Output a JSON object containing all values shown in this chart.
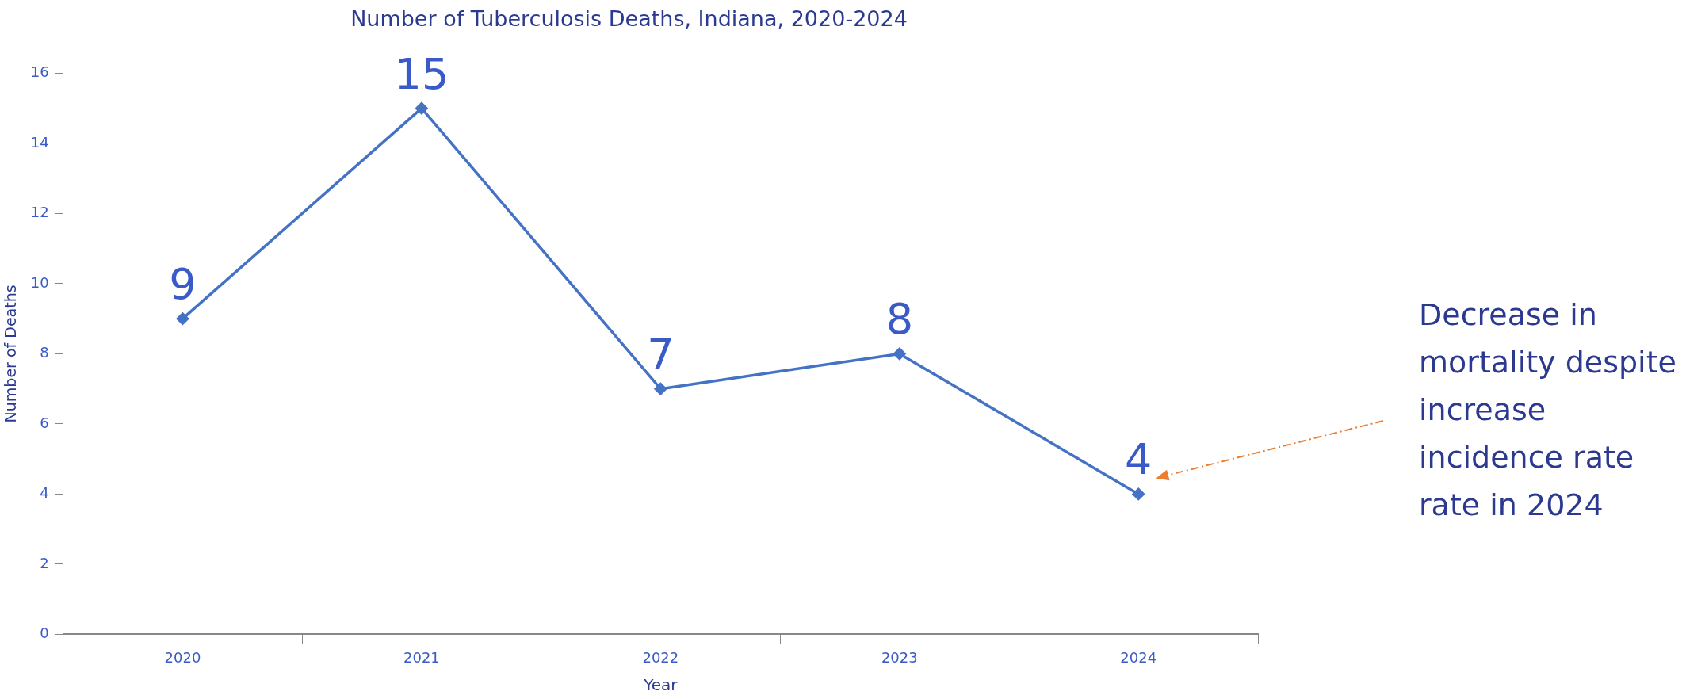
{
  "chart_data": {
    "type": "line",
    "title": "Number of Tuberculosis Deaths, Indiana, 2020-2024",
    "xlabel": "Year",
    "ylabel": "Number of Deaths",
    "categories": [
      "2020",
      "2021",
      "2022",
      "2023",
      "2024"
    ],
    "series": [
      {
        "color": "#4472c4",
        "values": [
          9,
          15,
          7,
          8,
          4
        ]
      }
    ],
    "ylim": [
      0,
      16
    ],
    "yticks": [
      0,
      2,
      4,
      6,
      8,
      10,
      12,
      14,
      16
    ],
    "grid": false,
    "legend": false,
    "marker": "diamond",
    "line_style": "solid",
    "data_labels": true,
    "annotations": [
      "Decrease in\nmortality despite\nincrease\nincidence rate\nrate in 2024"
    ]
  }
}
